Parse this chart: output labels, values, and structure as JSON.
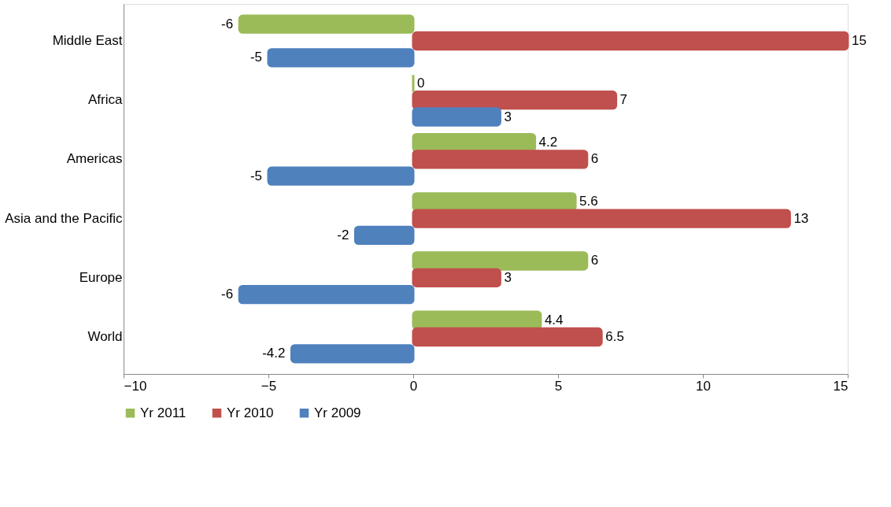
{
  "chart_data": {
    "type": "bar",
    "orientation": "horizontal",
    "categories": [
      "Middle East",
      "Africa",
      "Americas",
      "Asia and the Pacific",
      "Europe",
      "World"
    ],
    "series": [
      {
        "name": "Yr 2011",
        "color": "#9bbb59",
        "values": [
          -6,
          0,
          4.2,
          5.6,
          6,
          4.4
        ]
      },
      {
        "name": "Yr 2010",
        "color": "#c0504d",
        "values": [
          15,
          7,
          6,
          13,
          3,
          6.5
        ]
      },
      {
        "name": "Yr 2009",
        "color": "#4f81bd",
        "values": [
          -5,
          3,
          -5,
          -2,
          -6,
          -4.2
        ]
      }
    ],
    "xlim": [
      -10,
      15
    ],
    "xticks": [
      -10,
      -5,
      0,
      5,
      10,
      15
    ],
    "data_labels": true,
    "grid": false,
    "legend": "bottom"
  }
}
